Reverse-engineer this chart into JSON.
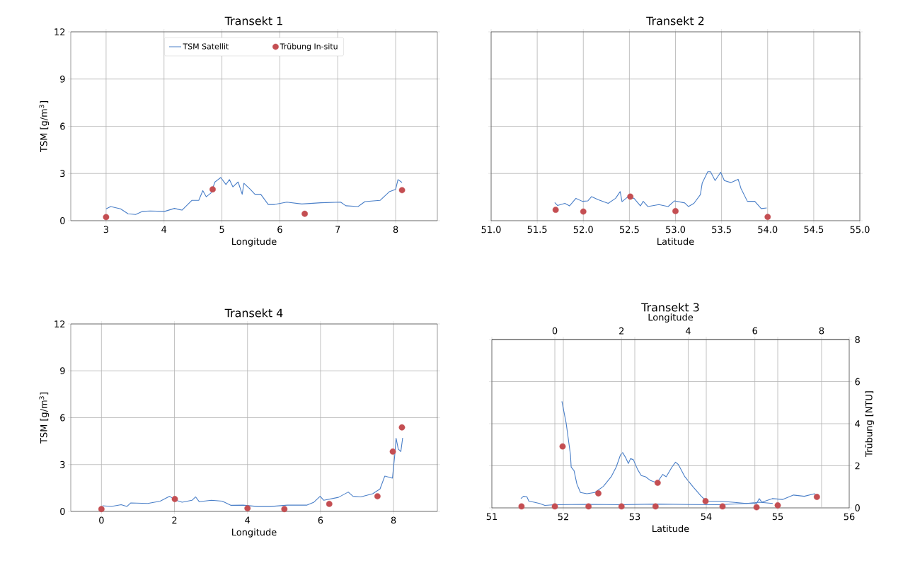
{
  "chart_data": [
    {
      "type": "line",
      "title": "Transekt 1",
      "xlabel": "Longitude",
      "ylabel": "TSM [g/m$^{3}$]",
      "xlim": [
        2.39,
        8.72
      ],
      "xticks": [
        3,
        4,
        5,
        6,
        7,
        8
      ],
      "ylim": [
        0,
        12
      ],
      "yticks": [
        0,
        3,
        6,
        9,
        12
      ],
      "grid": true,
      "legend": "top",
      "series": [
        {
          "name": "TSM Satellit",
          "type": "line",
          "color": "#4a7fc8",
          "x": [
            3.0,
            3.08,
            3.17,
            3.25,
            3.38,
            3.51,
            3.63,
            3.76,
            4.01,
            4.18,
            4.31,
            4.48,
            4.6,
            4.67,
            4.73,
            4.81,
            4.88,
            4.98,
            5.07,
            5.13,
            5.19,
            5.28,
            5.35,
            5.38,
            5.49,
            5.57,
            5.67,
            5.8,
            5.91,
            6.12,
            6.38,
            6.71,
            7.05,
            7.14,
            7.35,
            7.47,
            7.73,
            7.89,
            8.0,
            8.04,
            8.11
          ],
          "values": [
            0.75,
            0.9,
            0.82,
            0.75,
            0.44,
            0.39,
            0.59,
            0.62,
            0.59,
            0.78,
            0.67,
            1.29,
            1.29,
            1.91,
            1.52,
            1.76,
            2.46,
            2.74,
            2.3,
            2.61,
            2.15,
            2.46,
            1.68,
            2.38,
            1.99,
            1.68,
            1.68,
            1.03,
            1.03,
            1.18,
            1.06,
            1.14,
            1.18,
            0.95,
            0.9,
            1.21,
            1.29,
            1.84,
            1.99,
            2.61,
            2.43
          ]
        },
        {
          "name": "Trübung In-situ",
          "type": "scatter",
          "color": "#c44e52",
          "x": [
            3.0,
            4.84,
            6.43,
            8.11
          ],
          "values": [
            0.23,
            1.99,
            0.44,
            1.94
          ]
        }
      ]
    },
    {
      "type": "line",
      "title": "Transekt 2",
      "xlabel": "Latitude",
      "xlim": [
        51,
        55
      ],
      "xticks": [
        {
          "value": 51,
          "label": "51.0"
        },
        {
          "value": 51.5,
          "label": "51.5"
        },
        {
          "value": 52,
          "label": "52.0"
        },
        {
          "value": 52.5,
          "label": "52.5"
        },
        {
          "value": 53,
          "label": "53.0"
        },
        {
          "value": 53.5,
          "label": "53.5"
        },
        {
          "value": 54,
          "label": "54.0"
        },
        {
          "value": 54.5,
          "label": "54.5"
        },
        {
          "value": 55,
          "label": "55.0"
        }
      ],
      "ylim": [
        0,
        12
      ],
      "yticks": [
        0,
        3,
        6,
        9,
        12
      ],
      "tick_labels": "x",
      "grid": true,
      "series": [
        {
          "type": "line",
          "color": "#4a7fc8",
          "x": [
            51.69,
            51.72,
            51.8,
            51.85,
            51.92,
            51.99,
            52.05,
            52.09,
            52.16,
            52.27,
            52.35,
            52.4,
            52.42,
            52.48,
            52.55,
            52.62,
            52.65,
            52.7,
            52.82,
            52.92,
            52.99,
            53.1,
            53.14,
            53.2,
            53.27,
            53.29,
            53.35,
            53.38,
            53.43,
            53.49,
            53.53,
            53.6,
            53.68,
            53.71,
            53.78,
            53.86,
            53.93,
            53.99
          ],
          "values": [
            1.15,
            0.97,
            1.1,
            0.94,
            1.42,
            1.23,
            1.26,
            1.53,
            1.34,
            1.1,
            1.42,
            1.85,
            1.21,
            1.5,
            1.42,
            0.94,
            1.23,
            0.9,
            1.02,
            0.9,
            1.26,
            1.13,
            0.9,
            1.1,
            1.66,
            2.39,
            3.11,
            3.11,
            2.55,
            3.08,
            2.55,
            2.42,
            2.63,
            2.06,
            1.23,
            1.23,
            0.77,
            0.81
          ]
        },
        {
          "type": "scatter",
          "color": "#c44e52",
          "x": [
            51.7,
            52.0,
            52.51,
            53.0,
            54.0
          ],
          "values": [
            0.69,
            0.58,
            1.53,
            0.61,
            0.24
          ]
        }
      ]
    },
    {
      "type": "line",
      "title": "Transekt 4",
      "xlabel": "Longitude",
      "ylabel": "TSM [g/m$^{3}$]",
      "xlim": [
        -0.84,
        9.2
      ],
      "xticks": [
        0,
        2,
        4,
        6,
        8
      ],
      "ylim": [
        0,
        12
      ],
      "yticks": [
        0,
        3,
        6,
        9,
        12
      ],
      "grid": true,
      "series": [
        {
          "type": "line",
          "color": "#4a7fc8",
          "x": [
            0.03,
            0.27,
            0.54,
            0.7,
            0.8,
            1.27,
            1.61,
            1.87,
            2.01,
            2.21,
            2.48,
            2.58,
            2.68,
            3.01,
            3.31,
            3.55,
            3.88,
            4.28,
            4.62,
            5.09,
            5.62,
            5.82,
            5.99,
            6.09,
            6.49,
            6.76,
            6.89,
            7.1,
            7.43,
            7.63,
            7.76,
            7.97,
            8.03,
            8.07,
            8.13,
            8.2,
            8.25
          ],
          "values": [
            0.36,
            0.32,
            0.43,
            0.32,
            0.54,
            0.51,
            0.66,
            0.97,
            0.74,
            0.59,
            0.71,
            0.93,
            0.62,
            0.71,
            0.66,
            0.39,
            0.4,
            0.31,
            0.31,
            0.4,
            0.4,
            0.59,
            0.97,
            0.71,
            0.9,
            1.24,
            0.97,
            0.93,
            1.13,
            1.44,
            2.26,
            2.13,
            3.52,
            4.68,
            3.99,
            3.83,
            4.71
          ]
        },
        {
          "type": "scatter",
          "color": "#c44e52",
          "x": [
            0,
            2.01,
            4.0,
            5.01,
            6.24,
            7.56,
            7.98,
            8.23
          ],
          "values": [
            0.15,
            0.79,
            0.2,
            0.15,
            0.48,
            0.97,
            3.83,
            5.38
          ]
        }
      ]
    },
    {
      "type": "line",
      "title": "Transekt 3",
      "xlabel": "Latitude",
      "y2label": "Trübung [NTU]",
      "xlim": [
        51,
        56
      ],
      "xticks": [
        51,
        52,
        53,
        54,
        55,
        56
      ],
      "y2lim": [
        0,
        8
      ],
      "y2ticks": [
        0,
        2,
        4,
        6,
        8
      ],
      "grid": true,
      "series": [
        {
          "type": "line",
          "axis": "y2",
          "color": "#4a7fc8",
          "x": [
            51.98,
            52.04,
            52.1,
            52.11,
            52.15,
            52.19,
            52.24,
            52.33,
            52.44,
            52.56,
            52.67,
            52.74,
            52.8,
            52.83,
            52.87,
            52.91,
            52.94,
            52.98,
            53.04,
            53.09,
            53.15,
            53.22,
            53.31,
            53.39,
            53.44,
            53.52,
            53.57,
            53.61,
            53.7,
            53.81,
            53.93,
            54.0,
            54.19,
            54.37,
            54.56,
            54.74,
            54.93
          ],
          "values": [
            5.06,
            4.02,
            2.52,
            1.94,
            1.77,
            1.13,
            0.73,
            0.67,
            0.73,
            1.02,
            1.48,
            1.94,
            2.52,
            2.63,
            2.4,
            2.11,
            2.34,
            2.29,
            1.82,
            1.54,
            1.48,
            1.3,
            1.19,
            1.59,
            1.48,
            1.94,
            2.17,
            2.06,
            1.48,
            1.02,
            0.55,
            0.32,
            0.32,
            0.27,
            0.21,
            0.27,
            0.21
          ]
        },
        {
          "type": "scatter",
          "axis": "y2",
          "color": "#c44e52",
          "x": [
            51.99,
            52.49,
            53.32,
            53.99,
            55.0
          ],
          "values": [
            2.92,
            0.69,
            1.19,
            0.32,
            0.12
          ]
        }
      ]
    },
    {
      "type": "line",
      "xlabel": "Longitude",
      "xlim": [
        -1.89,
        8.83
      ],
      "xticks": [
        0,
        2,
        4,
        6,
        8
      ],
      "y2lim": [
        0,
        8
      ],
      "y2ticks": [
        0,
        2,
        4,
        6,
        8
      ],
      "tick_labels": "x",
      "grid": true,
      "series": [
        {
          "type": "line",
          "axis": "y2",
          "color": "#4a7fc8",
          "x": [
            -1.02,
            -0.94,
            -0.84,
            -0.78,
            -0.62,
            -0.46,
            -0.3,
            0,
            0.97,
            2.0,
            3.03,
            4.06,
            4.94,
            5.73,
            6.05,
            6.13,
            6.21,
            6.52,
            6.84,
            7.16,
            7.48,
            7.79,
            7.87
          ],
          "values": [
            0.44,
            0.55,
            0.53,
            0.32,
            0.27,
            0.21,
            0.12,
            0.15,
            0.17,
            0.15,
            0.18,
            0.16,
            0.15,
            0.21,
            0.21,
            0.44,
            0.27,
            0.44,
            0.4,
            0.61,
            0.55,
            0.67,
            0.5
          ]
        },
        {
          "type": "scatter",
          "axis": "y2",
          "color": "#c44e52",
          "x": [
            -1.0,
            0,
            1.01,
            2.0,
            3.02,
            5.03,
            6.05,
            7.86
          ],
          "values": [
            0.07,
            0.07,
            0.07,
            0.07,
            0.07,
            0.07,
            0.03,
            0.52
          ]
        }
      ]
    }
  ]
}
